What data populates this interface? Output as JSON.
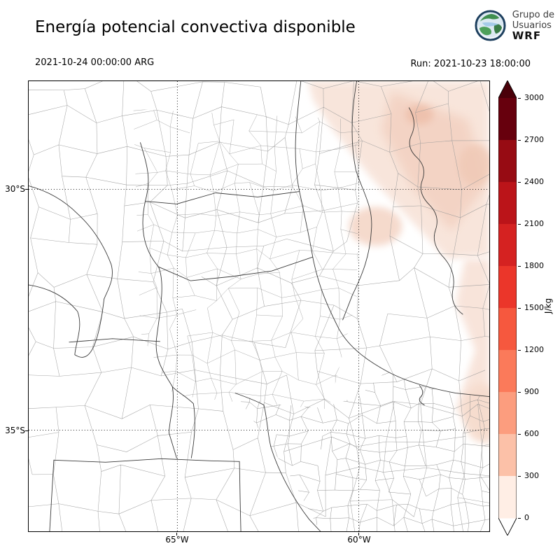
{
  "header": {
    "title": "Energía potencial convectiva disponible",
    "logo": {
      "line1": "Grupo de",
      "line2": "Usuarios",
      "line3": "WRF"
    },
    "valid_time": "2021-10-24 00:00:00 ARG",
    "run_time": "Run: 2021-10-23 18:00:00"
  },
  "axes": {
    "lat_ticks": [
      {
        "label": "30°S"
      },
      {
        "label": "35°S"
      }
    ],
    "lon_ticks": [
      {
        "label": "65°W"
      },
      {
        "label": "60°W"
      }
    ]
  },
  "colorbar": {
    "unit": "J/kg",
    "tick_labels": [
      "3000",
      "2700",
      "2400",
      "2100",
      "1800",
      "1500",
      "1200",
      "900",
      "600",
      "300",
      "0"
    ],
    "segment_colors_top_to_bottom": [
      "#67000d",
      "#970b13",
      "#bb1419",
      "#d52221",
      "#eb362a",
      "#f6583e",
      "#fb7a5a",
      "#fc9d7e",
      "#fcc1a8",
      "#ffeee5"
    ],
    "over_color": "#4a0009",
    "under_color": "#ffffff"
  },
  "chart_data": {
    "type": "heatmap",
    "title": "Energía potencial convectiva disponible",
    "value_unit": "J/kg",
    "levels": [
      0,
      300,
      600,
      900,
      1200,
      1500,
      1800,
      2100,
      2400,
      2700,
      3000
    ],
    "x_tick_labels": [
      "65°W",
      "60°W"
    ],
    "y_tick_labels": [
      "30°S",
      "35°S"
    ],
    "colorbar_position": "right",
    "field_summary": "CAPE near 0 (white) over most of the domain; pale 0-600 J/kg patches over the northeast sector and along the eastern edge of the map"
  }
}
